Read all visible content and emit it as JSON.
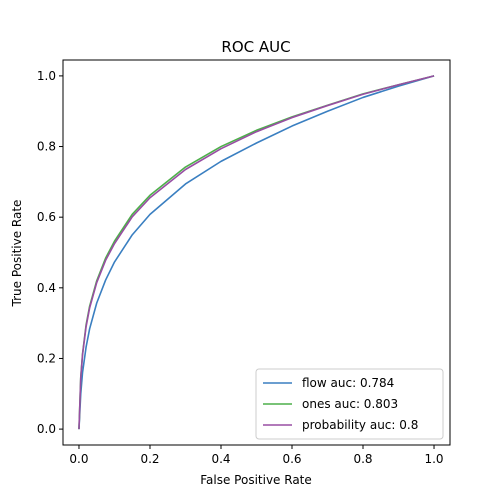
{
  "chart_data": {
    "type": "line",
    "title": "ROC AUC",
    "xlabel": "False Positive Rate",
    "ylabel": "True Positive Rate",
    "xlim": [
      -0.045,
      1.045
    ],
    "ylim": [
      -0.045,
      1.045
    ],
    "xticks": [
      0.0,
      0.2,
      0.4,
      0.6,
      0.8,
      1.0
    ],
    "yticks": [
      0.0,
      0.2,
      0.4,
      0.6,
      0.8,
      1.0
    ],
    "xtick_labels": [
      "0.0",
      "0.2",
      "0.4",
      "0.6",
      "0.8",
      "1.0"
    ],
    "ytick_labels": [
      "0.0",
      "0.2",
      "0.4",
      "0.6",
      "0.8",
      "1.0"
    ],
    "grid": false,
    "legend_position": "lower-right",
    "series": [
      {
        "name": "flow auc: 0.784",
        "color": "#3a7fc1",
        "x": [
          0.0,
          0.005,
          0.01,
          0.02,
          0.03,
          0.05,
          0.075,
          0.1,
          0.15,
          0.2,
          0.3,
          0.4,
          0.5,
          0.6,
          0.7,
          0.8,
          0.9,
          1.0
        ],
        "y": [
          0.0,
          0.1,
          0.16,
          0.232,
          0.284,
          0.357,
          0.422,
          0.473,
          0.55,
          0.608,
          0.694,
          0.758,
          0.81,
          0.858,
          0.9,
          0.939,
          0.971,
          1.0
        ]
      },
      {
        "name": "ones auc: 0.803",
        "color": "#4daf4a",
        "x": [
          0.0,
          0.005,
          0.01,
          0.02,
          0.03,
          0.05,
          0.075,
          0.1,
          0.15,
          0.2,
          0.3,
          0.4,
          0.5,
          0.6,
          0.7,
          0.8,
          0.9,
          1.0
        ],
        "y": [
          0.0,
          0.147,
          0.213,
          0.295,
          0.348,
          0.42,
          0.484,
          0.532,
          0.608,
          0.662,
          0.742,
          0.8,
          0.846,
          0.884,
          0.917,
          0.949,
          0.975,
          1.0
        ]
      },
      {
        "name": "probability auc: 0.8",
        "color": "#984ea3",
        "x": [
          0.0,
          0.005,
          0.01,
          0.02,
          0.03,
          0.05,
          0.075,
          0.1,
          0.15,
          0.2,
          0.3,
          0.4,
          0.5,
          0.6,
          0.7,
          0.8,
          0.9,
          1.0
        ],
        "y": [
          0.0,
          0.145,
          0.21,
          0.29,
          0.343,
          0.415,
          0.478,
          0.525,
          0.601,
          0.655,
          0.735,
          0.794,
          0.842,
          0.882,
          0.916,
          0.948,
          0.975,
          1.0
        ]
      }
    ]
  }
}
